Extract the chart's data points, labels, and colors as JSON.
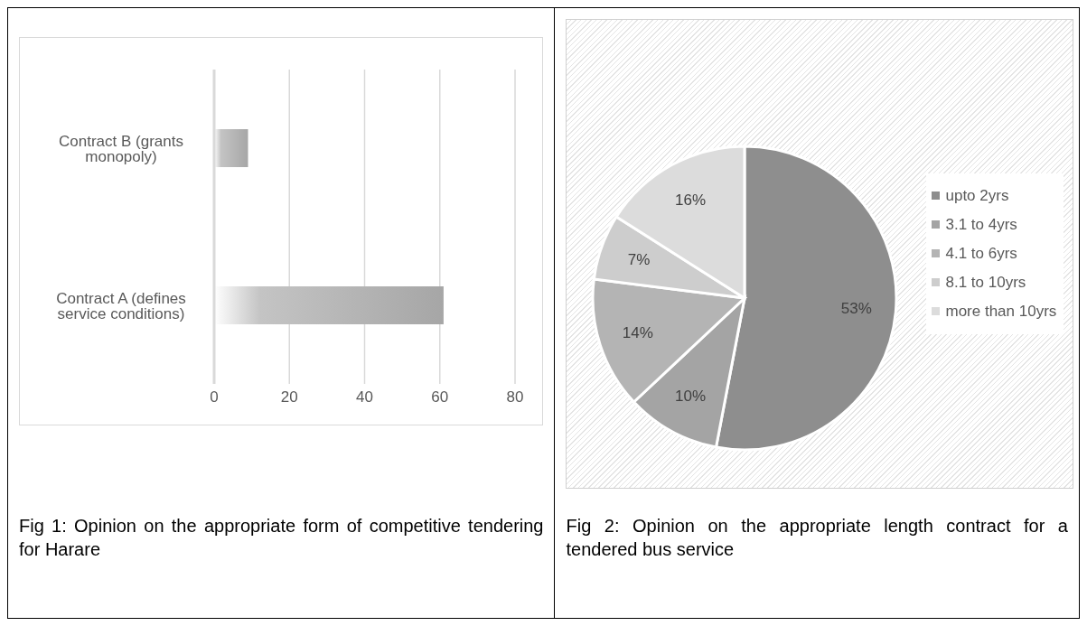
{
  "chart_data": [
    {
      "type": "bar",
      "orientation": "horizontal",
      "title": "Fig 1: Opinion on the appropriate form of competitive tendering for Harare",
      "categories": [
        "Contract B (grants monopoly)",
        "Contract A (defines service conditions)"
      ],
      "values": [
        9,
        61
      ],
      "color": "#a6a6a6",
      "xlim": [
        0,
        80
      ],
      "xticks": [
        0,
        20,
        40,
        60,
        80
      ],
      "grid": "x"
    },
    {
      "type": "pie",
      "title": "Fig 2: Opinion on the appropriate length contract for a tendered bus service",
      "categories": [
        "upto 2yrs",
        "3.1 to 4yrs",
        "4.1 to 6yrs",
        "8.1 to 10yrs",
        "more than 10yrs"
      ],
      "values": [
        53,
        10,
        14,
        7,
        16
      ],
      "value_labels": [
        "53%",
        "10%",
        "14%",
        "7%",
        "16%"
      ],
      "colors": [
        "#8e8e8e",
        "#a4a4a4",
        "#b4b4b4",
        "#cdcdcd",
        "#dcdcdc"
      ],
      "legend": "right"
    }
  ]
}
